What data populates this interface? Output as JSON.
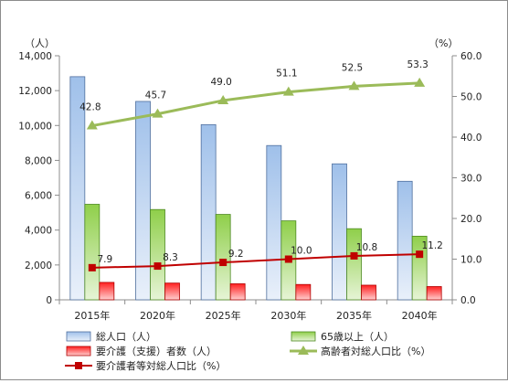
{
  "chart_data": {
    "type": "bar",
    "categories": [
      "2015年",
      "2020年",
      "2025年",
      "2030年",
      "2035年",
      "2040年"
    ],
    "y_left": {
      "unit": "（人）",
      "range": [
        0,
        14000
      ],
      "step": 2000,
      "tick_labels": [
        "0",
        "2,000",
        "4,000",
        "6,000",
        "8,000",
        "10,000",
        "12,000",
        "14,000"
      ]
    },
    "y_right": {
      "unit": "（%）",
      "range": [
        0,
        60
      ],
      "step": 10,
      "tick_labels": [
        "0.0",
        "10.0",
        "20.0",
        "30.0",
        "40.0",
        "50.0",
        "60.0"
      ]
    },
    "bar_series": [
      {
        "name": "総人口（人）",
        "color": "#8eb4e3",
        "values": [
          12800,
          11380,
          10050,
          8850,
          7800,
          6800
        ]
      },
      {
        "name": "65歳以上（人）",
        "color": "#92d050",
        "values": [
          5480,
          5180,
          4900,
          4530,
          4080,
          3650
        ]
      },
      {
        "name": "要介護（支援）者数（人）",
        "color": "#ff3333",
        "values": [
          1000,
          960,
          920,
          880,
          840,
          760
        ]
      }
    ],
    "line_series": [
      {
        "name": "高齢者対総人口比（%）",
        "color": "#9bbb59",
        "marker": "triangle",
        "values": [
          42.8,
          45.7,
          49.0,
          51.1,
          52.5,
          53.3
        ],
        "labels": [
          "42.8",
          "45.7",
          "49.0",
          "51.1",
          "52.5",
          "53.3"
        ]
      },
      {
        "name": "要介護者等対総人口比（%）",
        "color": "#c00000",
        "marker": "square",
        "values": [
          7.9,
          8.3,
          9.2,
          10.0,
          10.8,
          11.2
        ],
        "labels": [
          "7.9",
          "8.3",
          "9.2",
          "10.0",
          "10.8",
          "11.2"
        ]
      }
    ],
    "grid": false,
    "legend_position": "bottom"
  }
}
